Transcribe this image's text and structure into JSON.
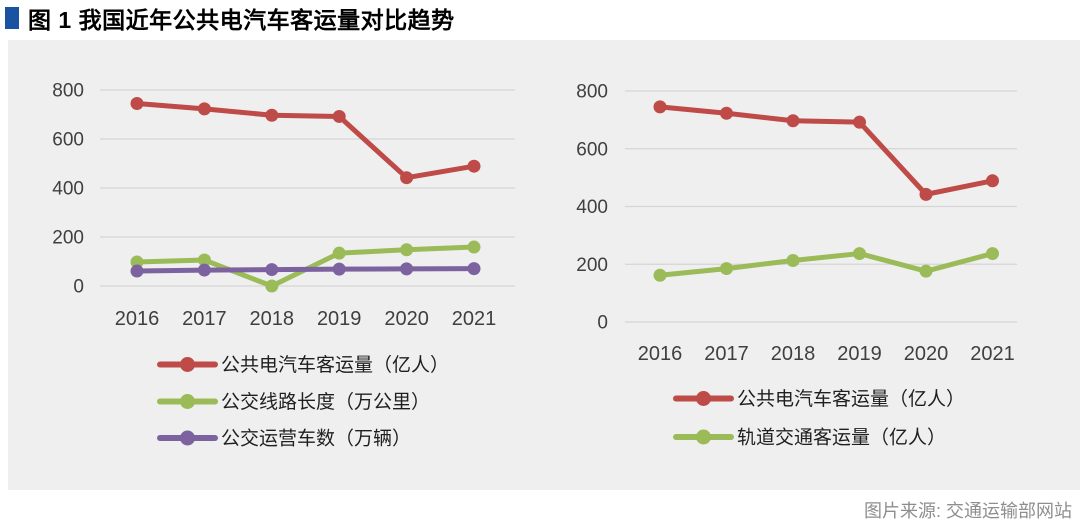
{
  "title": "图 1 我国近年公共电汽车客运量对比趋势",
  "source": "图片来源: 交通运输部网站",
  "colors": {
    "title_marker": "#1a53a1",
    "panel_background": "#efefef",
    "gridline": "#d5d5d5",
    "tick_label": "#3f3f3f",
    "legend_text": "#1f1f1f",
    "source_text": "#8e8e8e",
    "series_red": "#be4b48",
    "series_green": "#9bbb59",
    "series_purple": "#7d62a0"
  },
  "chart_data": [
    {
      "type": "line",
      "title": "",
      "xlabel": "",
      "ylabel": "",
      "x_labels": [
        "2016",
        "2017",
        "2018",
        "2019",
        "2020",
        "2021"
      ],
      "ylim": [
        0,
        800
      ],
      "yticks": [
        0,
        200,
        400,
        600,
        800
      ],
      "grid": true,
      "legend_position": "bottom",
      "series": [
        {
          "name": "公共电汽车客运量（亿人）",
          "color": "#be4b48",
          "values": [
            745,
            723,
            697,
            692,
            442,
            489
          ]
        },
        {
          "name": "公交线路长度（万公里）",
          "color": "#9bbb59",
          "values": [
            98,
            106,
            0,
            134,
            148,
            159
          ]
        },
        {
          "name": "公交运营车数（万辆）",
          "color": "#7d62a0",
          "values": [
            61,
            65,
            67,
            69,
            70,
            71
          ]
        }
      ]
    },
    {
      "type": "line",
      "title": "",
      "xlabel": "",
      "ylabel": "",
      "x_labels": [
        "2016",
        "2017",
        "2018",
        "2019",
        "2020",
        "2021"
      ],
      "ylim": [
        0,
        800
      ],
      "yticks": [
        0,
        200,
        400,
        600,
        800
      ],
      "grid": true,
      "legend_position": "bottom",
      "series": [
        {
          "name": "公共电汽车客运量（亿人）",
          "color": "#be4b48",
          "values": [
            745,
            723,
            697,
            692,
            442,
            489
          ]
        },
        {
          "name": "轨道交通客运量（亿人）",
          "color": "#9bbb59",
          "values": [
            162,
            185,
            213,
            237,
            176,
            237
          ]
        }
      ]
    }
  ]
}
